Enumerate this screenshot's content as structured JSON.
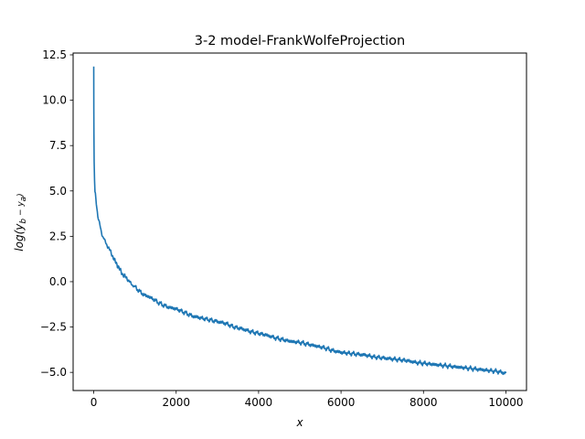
{
  "chart_data": {
    "type": "line",
    "title": "3-2 model-FrankWolfeProjection",
    "xlabel": "x",
    "ylabel": "log(y_b - y_a)",
    "xlim": [
      -500,
      10500
    ],
    "ylim": [
      -6,
      12.6
    ],
    "xticks": [
      0,
      2000,
      4000,
      6000,
      8000,
      10000
    ],
    "xtick_labels": [
      "0",
      "2000",
      "4000",
      "6000",
      "8000",
      "10000"
    ],
    "yticks": [
      -5.0,
      -2.5,
      0.0,
      2.5,
      5.0,
      7.5,
      10.0,
      12.5
    ],
    "ytick_labels": [
      "−5.0",
      "−2.5",
      "0.0",
      "2.5",
      "5.0",
      "7.5",
      "10.0",
      "12.5"
    ],
    "grid": false,
    "series": [
      {
        "color": "#1f77b4",
        "x": [
          0,
          2,
          5,
          10,
          20,
          30,
          50,
          75,
          100,
          150,
          200,
          300,
          400,
          500,
          600,
          700,
          800,
          900,
          1000,
          1200,
          1400,
          1600,
          1800,
          2000,
          2200,
          2400,
          2600,
          2800,
          3000,
          3200,
          3400,
          3600,
          3800,
          4000,
          4200,
          4400,
          4600,
          4800,
          5000,
          5200,
          5400,
          5600,
          5800,
          6000,
          6200,
          6400,
          6600,
          6800,
          7000,
          7200,
          7400,
          7600,
          7800,
          8000,
          8200,
          8400,
          8600,
          8800,
          9000,
          9200,
          9400,
          9600,
          9800,
          10000
        ],
        "y": [
          11.8,
          9.5,
          8.0,
          6.6,
          5.5,
          5.0,
          4.6,
          4.1,
          3.6,
          3.1,
          2.6,
          2.1,
          1.7,
          1.2,
          0.8,
          0.4,
          0.2,
          -0.1,
          -0.3,
          -0.7,
          -0.9,
          -1.2,
          -1.4,
          -1.5,
          -1.7,
          -1.9,
          -2.0,
          -2.1,
          -2.2,
          -2.3,
          -2.5,
          -2.6,
          -2.75,
          -2.85,
          -2.95,
          -3.1,
          -3.2,
          -3.3,
          -3.35,
          -3.45,
          -3.55,
          -3.65,
          -3.8,
          -3.9,
          -3.95,
          -4.0,
          -4.05,
          -4.15,
          -4.2,
          -4.25,
          -4.3,
          -4.35,
          -4.45,
          -4.5,
          -4.55,
          -4.6,
          -4.65,
          -4.7,
          -4.75,
          -4.8,
          -4.85,
          -4.9,
          -4.95,
          -5.05
        ]
      }
    ]
  }
}
